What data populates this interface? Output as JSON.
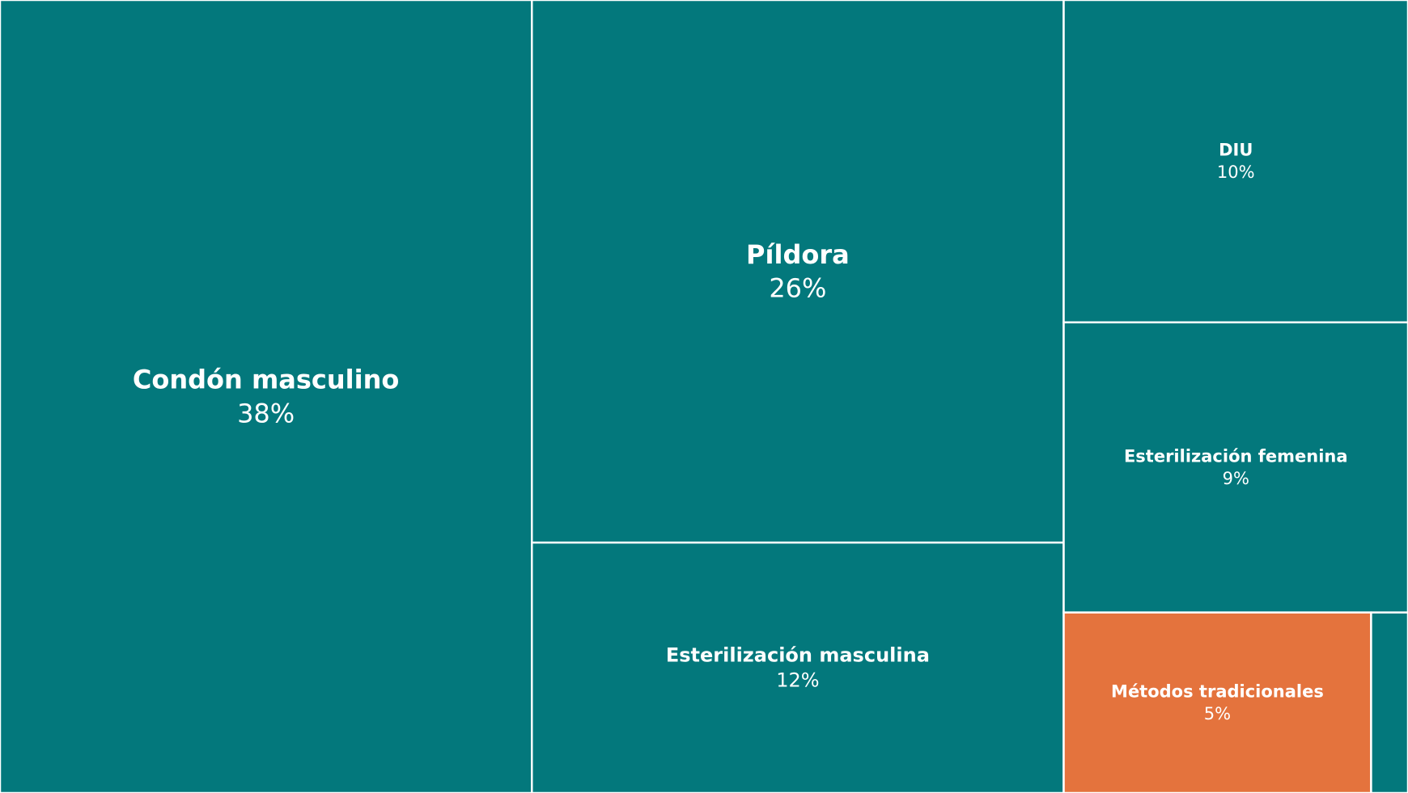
{
  "chart_data": {
    "type": "treemap",
    "categories": [
      "Condón masculino",
      "Píldora",
      "Esterilización masculina",
      "DIU",
      "Esterilización femenina",
      "Métodos tradicionales",
      null
    ],
    "values": [
      38,
      26,
      12,
      10,
      9,
      5,
      0.6
    ],
    "value_labels": [
      "38%",
      "26%",
      "12%",
      "10%",
      "9%",
      "5%",
      null
    ],
    "colors": [
      "#03787c",
      "#03787c",
      "#03787c",
      "#03787c",
      "#03787c",
      "#e4733d",
      "#03787c"
    ]
  }
}
